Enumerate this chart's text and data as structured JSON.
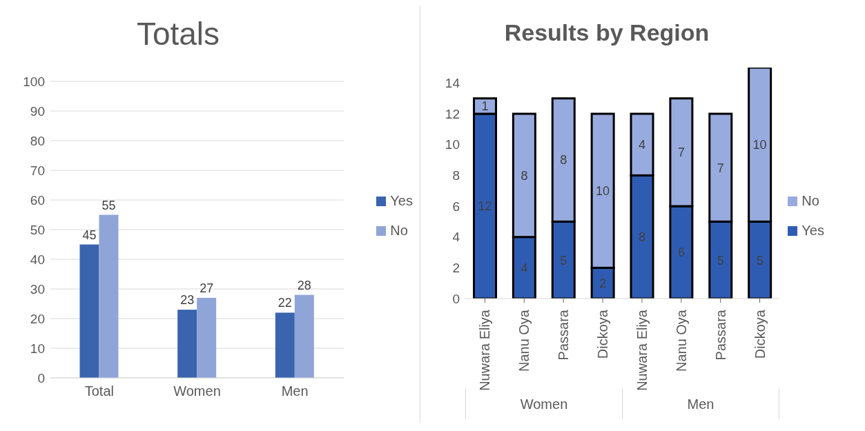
{
  "chart_data": [
    {
      "type": "bar",
      "title": "Totals",
      "categories": [
        "Total",
        "Women",
        "Men"
      ],
      "series": [
        {
          "name": "Yes",
          "color": "#3a64ad",
          "values": [
            45,
            23,
            22
          ]
        },
        {
          "name": "No",
          "color": "#8fa5d8",
          "values": [
            55,
            27,
            28
          ]
        }
      ],
      "ylim": [
        0,
        100
      ],
      "yticks": [
        0,
        10,
        20,
        30,
        40,
        50,
        60,
        70,
        80,
        90,
        100
      ],
      "grid": "y",
      "legend": "right",
      "data_labels": true
    },
    {
      "type": "bar",
      "title": "Results by Region",
      "stacked": true,
      "categories": [
        "Nuwara Eliya",
        "Nanu Oya",
        "Passara",
        "Dickoya",
        "Nuwara Eliya",
        "Nanu Oya",
        "Passara",
        "Dickoya"
      ],
      "series": [
        {
          "name": "Yes",
          "color": "#2f5cb3",
          "values": [
            12,
            4,
            5,
            2,
            8,
            6,
            5,
            5
          ]
        },
        {
          "name": "No",
          "color": "#98abdf",
          "values": [
            1,
            8,
            8,
            10,
            4,
            7,
            7,
            10
          ]
        }
      ],
      "annotations": [
        "Women",
        "Men"
      ],
      "ylim": [
        0,
        15
      ],
      "yticks": [
        0,
        2,
        4,
        6,
        8,
        10,
        12,
        14
      ],
      "grid": false,
      "legend": "right",
      "data_labels": true
    }
  ]
}
